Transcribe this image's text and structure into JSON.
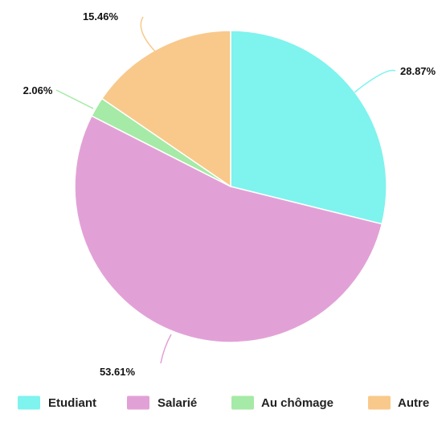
{
  "chart_data": {
    "type": "pie",
    "slices": [
      {
        "label": "Etudiant",
        "value": 28.87,
        "display": "28.87%",
        "color": "#7ff3ee"
      },
      {
        "label": "Salarié",
        "value": 53.61,
        "display": "53.61%",
        "color": "#e2a1d6"
      },
      {
        "label": "Au chômage",
        "value": 2.06,
        "display": "2.06%",
        "color": "#a5eaa6"
      },
      {
        "label": "Autre",
        "value": 15.46,
        "display": "15.46%",
        "color": "#f8c98b"
      }
    ],
    "start": "12 o'clock",
    "direction": "clockwise",
    "legend_position": "bottom"
  }
}
